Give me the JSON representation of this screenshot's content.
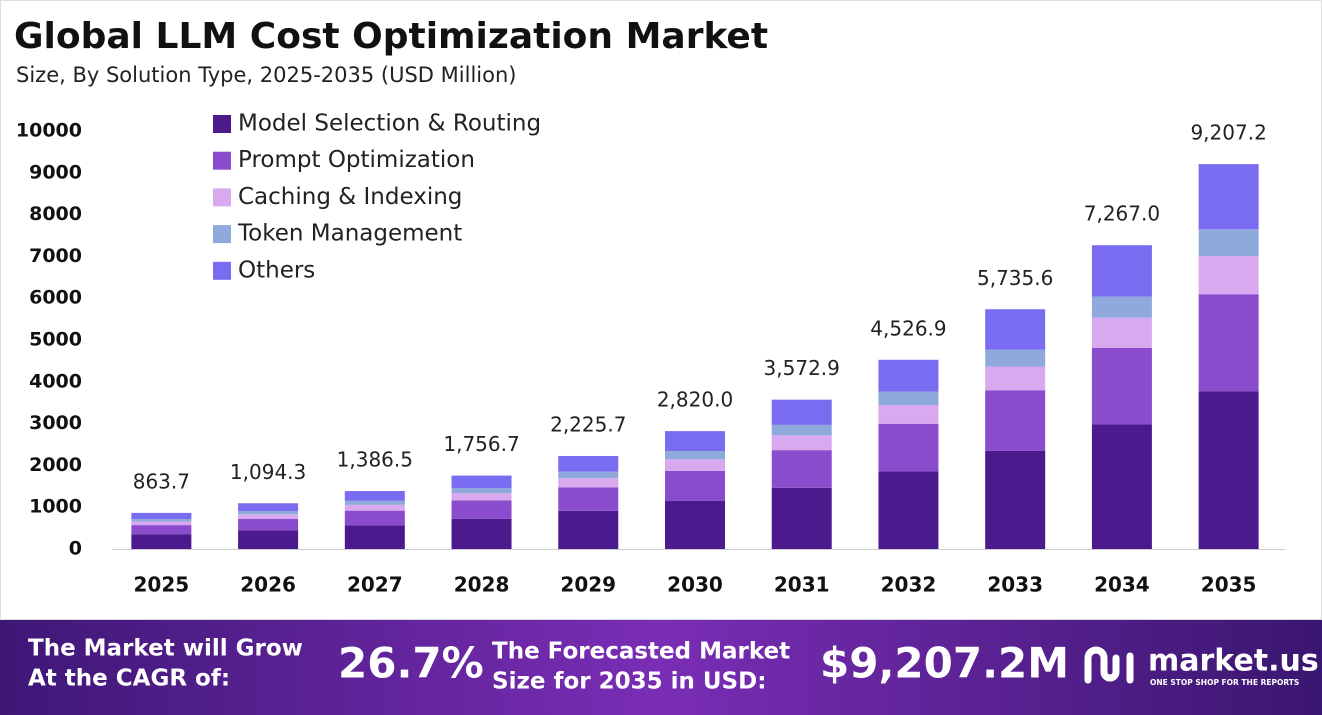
{
  "chart_data": {
    "type": "stacked_bar",
    "title": "Global LLM Cost Optimization Market",
    "subtitle": "Size, By Solution Type, 2025-2035 (USD Million)",
    "categories": [
      "2025",
      "2026",
      "2027",
      "2028",
      "2029",
      "2030",
      "2031",
      "2032",
      "2033",
      "2034",
      "2035"
    ],
    "series": [
      {
        "name": "Model Selection & Routing",
        "color": "#4b1a8c",
        "values": [
          354.1,
          448.7,
          568.5,
          720.2,
          912.5,
          1156.2,
          1464.9,
          1856.0,
          2351.6,
          2979.5,
          3775.0
        ]
      },
      {
        "name": "Prompt Optimization",
        "color": "#8a4ccc",
        "values": [
          217.7,
          275.8,
          349.4,
          442.7,
          560.9,
          710.6,
          900.4,
          1140.8,
          1445.4,
          1831.3,
          2320.2
        ]
      },
      {
        "name": "Caching & Indexing",
        "color": "#d8a9ee",
        "values": [
          85.5,
          108.3,
          137.3,
          173.9,
          220.3,
          279.2,
          353.7,
          448.2,
          567.8,
          719.4,
          911.5
        ]
      },
      {
        "name": "Token Management",
        "color": "#8fa9dc",
        "values": [
          60.5,
          76.6,
          97.1,
          123.0,
          155.8,
          197.4,
          250.1,
          316.9,
          401.5,
          508.7,
          644.5
        ]
      },
      {
        "name": "Others",
        "color": "#7a6cf0",
        "values": [
          145.9,
          184.9,
          234.2,
          296.9,
          376.2,
          476.6,
          603.8,
          765.0,
          969.3,
          1228.1,
          1556.0
        ]
      }
    ],
    "totals": [
      863.7,
      1094.3,
      1386.5,
      1756.7,
      2225.7,
      2820.0,
      3572.9,
      4526.9,
      5735.6,
      7267.0,
      9207.2
    ],
    "total_labels": [
      "863.7",
      "1,094.3",
      "1,386.5",
      "1,756.7",
      "2,225.7",
      "2,820.0",
      "3,572.9",
      "4,526.9",
      "5,735.6",
      "7,267.0",
      "9,207.2"
    ],
    "ylim": [
      0,
      10000
    ],
    "yticks": [
      0,
      1000,
      2000,
      3000,
      4000,
      5000,
      6000,
      7000,
      8000,
      9000,
      10000
    ],
    "grid": false,
    "legend": "top-left"
  },
  "footer": {
    "cagr_text": [
      "The Market will Grow",
      "At the CAGR of:"
    ],
    "cagr_value": "26.7%",
    "forecast_text": [
      "The Forecasted Market",
      "Size for 2035 in USD:"
    ],
    "forecast_value": "$9,207.2M",
    "brand": "market.us",
    "tagline": "ONE STOP SHOP FOR THE REPORTS"
  }
}
